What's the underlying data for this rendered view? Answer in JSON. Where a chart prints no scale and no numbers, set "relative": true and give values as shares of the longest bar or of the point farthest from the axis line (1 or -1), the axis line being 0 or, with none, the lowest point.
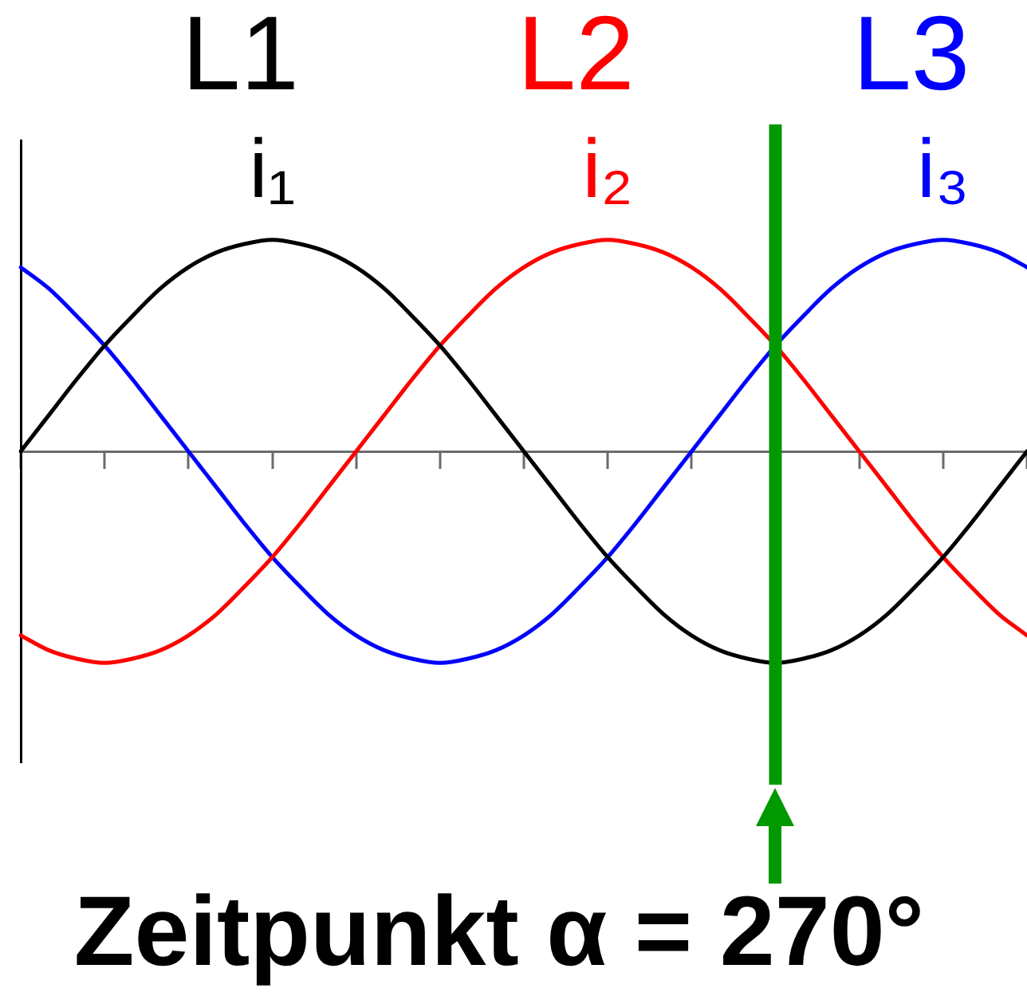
{
  "chart_data": {
    "type": "line",
    "relative": true,
    "title": "Zeitpunkt α = 270°",
    "categories": [
      null,
      null,
      null,
      null,
      null,
      null,
      null,
      null,
      null,
      null,
      null,
      null,
      null,
      null,
      null,
      null,
      null,
      null,
      null,
      null,
      null,
      null,
      null,
      null,
      null,
      null,
      null,
      null,
      null,
      null,
      null,
      null,
      null,
      null,
      null,
      null,
      null
    ],
    "series": [
      {
        "name": "i₁",
        "color": "#000000",
        "values": [
          0,
          0.17,
          0.34,
          0.5,
          0.64,
          0.77,
          0.87,
          0.94,
          0.98,
          1,
          0.98,
          0.94,
          0.87,
          0.77,
          0.64,
          0.5,
          0.34,
          0.17,
          0,
          -0.17,
          -0.34,
          -0.5,
          -0.64,
          -0.77,
          -0.87,
          -0.94,
          -0.98,
          -1,
          -0.98,
          -0.94,
          -0.87,
          -0.77,
          -0.64,
          -0.5,
          -0.34,
          -0.17,
          0
        ]
      },
      {
        "name": "i₂",
        "color": "#ff0000",
        "values": [
          -0.87,
          -0.94,
          -0.98,
          -1,
          -0.98,
          -0.94,
          -0.87,
          -0.77,
          -0.64,
          -0.5,
          -0.34,
          -0.17,
          0,
          0.17,
          0.34,
          0.5,
          0.64,
          0.77,
          0.87,
          0.94,
          0.98,
          1,
          0.98,
          0.94,
          0.87,
          0.77,
          0.64,
          0.5,
          0.34,
          0.17,
          0,
          -0.17,
          -0.34,
          -0.5,
          -0.64,
          -0.77,
          -0.87
        ]
      },
      {
        "name": "i₃",
        "color": "#0000ff",
        "values": [
          0.87,
          0.77,
          0.64,
          0.5,
          0.34,
          0.17,
          0,
          -0.17,
          -0.34,
          -0.5,
          -0.64,
          -0.77,
          -0.87,
          -0.94,
          -0.98,
          -1,
          -0.98,
          -0.94,
          -0.87,
          -0.77,
          -0.64,
          -0.5,
          -0.34,
          -0.17,
          0,
          0.17,
          0.34,
          0.5,
          0.64,
          0.77,
          0.87,
          0.94,
          0.98,
          1,
          0.98,
          0.94,
          0.87
        ]
      }
    ],
    "annotations": [
      "L1",
      "L2",
      "L3"
    ]
  }
}
